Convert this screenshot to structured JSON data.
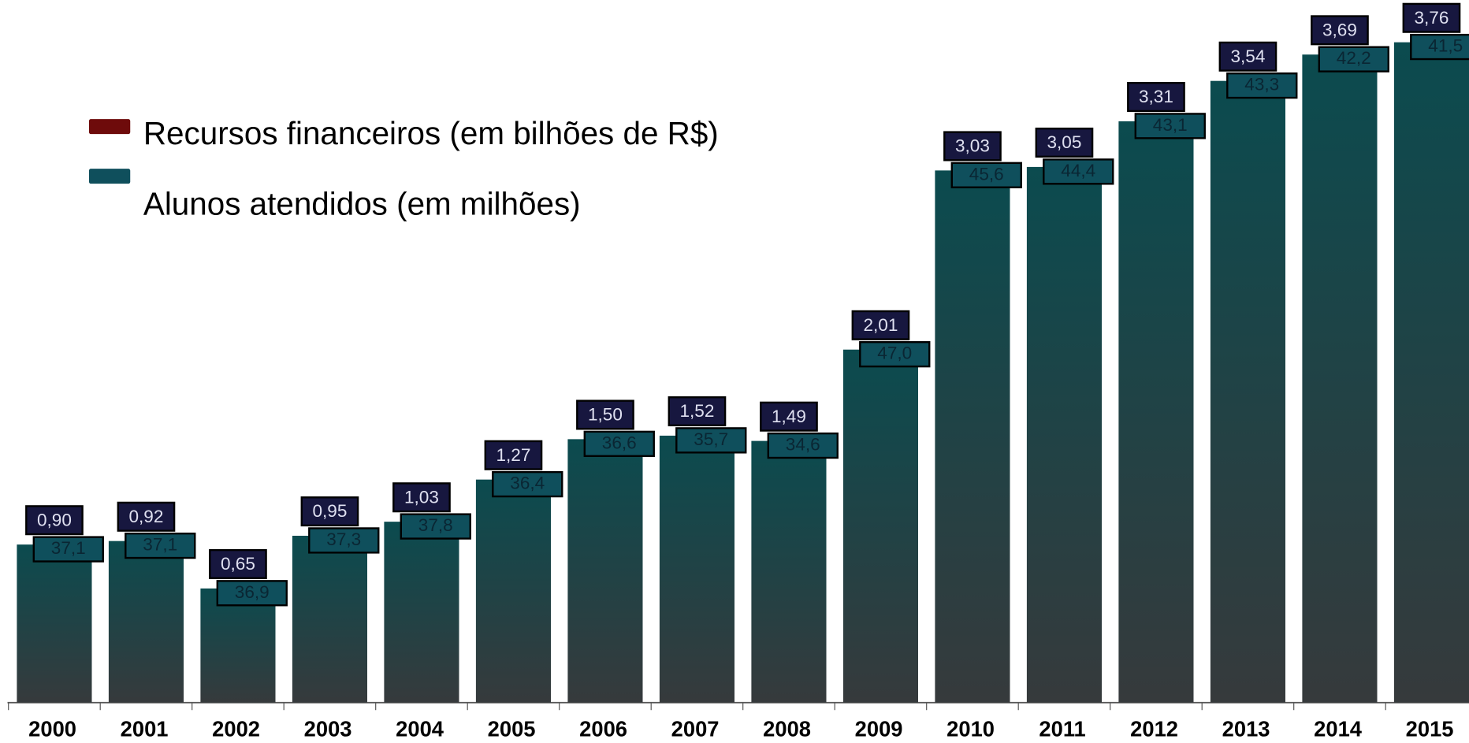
{
  "chart_data": {
    "type": "bar",
    "categories": [
      "2000",
      "2001",
      "2002",
      "2003",
      "2004",
      "2005",
      "2006",
      "2007",
      "2008",
      "2009",
      "2010",
      "2011",
      "2012",
      "2013",
      "2014",
      "2015"
    ],
    "series": [
      {
        "name": "Recursos financeiros (em bilhões de R$)",
        "color": "#6e0b0b",
        "values": [
          0.9,
          0.92,
          0.65,
          0.95,
          1.03,
          1.27,
          1.5,
          1.52,
          1.49,
          2.01,
          3.03,
          3.05,
          3.31,
          3.54,
          3.69,
          3.76
        ],
        "value_labels": [
          "0,90",
          "0,92",
          "0,65",
          "0,95",
          "1,03",
          "1,27",
          "1,50",
          "1,52",
          "1,49",
          "2,01",
          "3,03",
          "3,05",
          "3,31",
          "3,54",
          "3,69",
          "3,76"
        ]
      },
      {
        "name": "Alunos atendidos (em milhões)",
        "color": "#0f4f5c",
        "values": [
          37.1,
          37.1,
          36.9,
          37.3,
          37.8,
          36.4,
          36.6,
          35.7,
          34.6,
          47.0,
          45.6,
          44.4,
          43.1,
          43.3,
          42.2,
          41.5
        ],
        "value_labels": [
          "37,1",
          "37,1",
          "36,9",
          "37,3",
          "37,8",
          "36,4",
          "36,6",
          "35,7",
          "34,6",
          "47,0",
          "45,6",
          "44,4",
          "43,1",
          "43,3",
          "42,2",
          "41,5"
        ]
      }
    ]
  }
}
